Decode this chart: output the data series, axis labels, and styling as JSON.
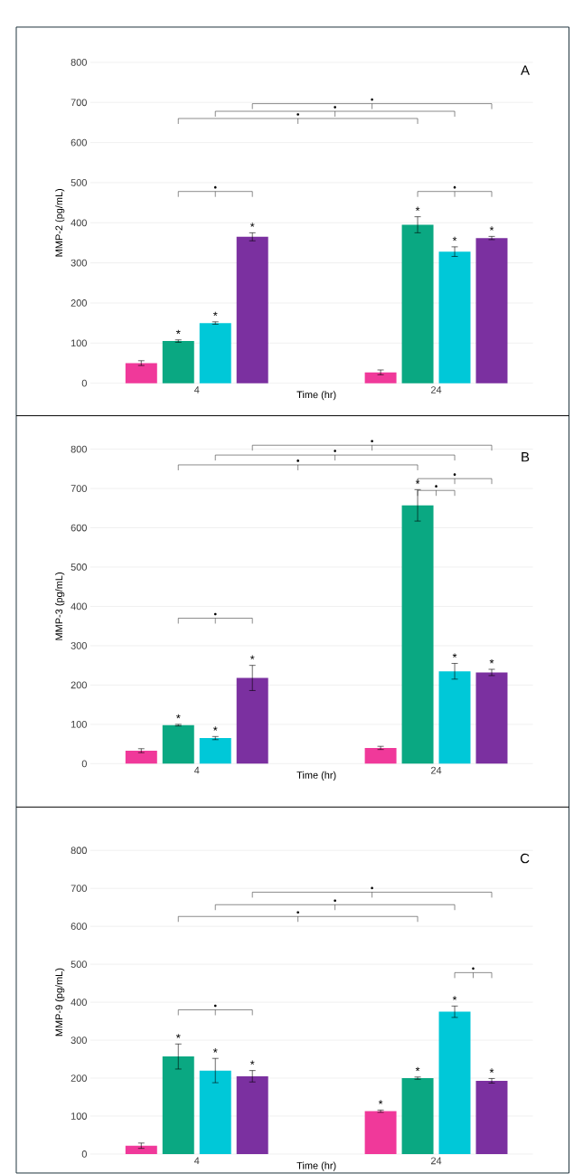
{
  "chart_data": [
    {
      "type": "bar",
      "title": "A",
      "xlabel": "Time (hr)",
      "ylabel": "MMP-2 (pg/mL)",
      "categories": [
        "4",
        "24"
      ],
      "ylim": [
        0,
        800
      ],
      "yticks": [
        0,
        100,
        200,
        300,
        400,
        500,
        600,
        700,
        800
      ],
      "grid": "y",
      "series": [
        {
          "color": "#f0399a",
          "values": [
            50,
            27
          ],
          "errors": [
            6,
            6
          ],
          "value_labels": [
            null,
            null
          ]
        },
        {
          "color": "#0aa882",
          "values": [
            105,
            395
          ],
          "errors": [
            3,
            20
          ],
          "value_labels": [
            "*",
            "*"
          ]
        },
        {
          "color": "#00c8d8",
          "values": [
            150,
            328
          ],
          "errors": [
            3,
            12
          ],
          "value_labels": [
            "*",
            "*"
          ]
        },
        {
          "color": "#7b30a0",
          "values": [
            365,
            362
          ],
          "errors": [
            10,
            4
          ],
          "value_labels": [
            "*",
            "*"
          ]
        }
      ],
      "annotations": [
        "•",
        "•",
        "•",
        "•",
        "•"
      ]
    },
    {
      "type": "bar",
      "title": "B",
      "xlabel": "Time (hr)",
      "ylabel": "MMP-3 (pg/mL)",
      "categories": [
        "4",
        "24"
      ],
      "ylim": [
        0,
        800
      ],
      "yticks": [
        0,
        100,
        200,
        300,
        400,
        500,
        600,
        700,
        800
      ],
      "grid": "y",
      "series": [
        {
          "color": "#f0399a",
          "values": [
            33,
            40
          ],
          "errors": [
            5,
            4
          ],
          "value_labels": [
            null,
            null
          ]
        },
        {
          "color": "#0aa882",
          "values": [
            98,
            657
          ],
          "errors": [
            2,
            40
          ],
          "value_labels": [
            "*",
            "*"
          ]
        },
        {
          "color": "#00c8d8",
          "values": [
            65,
            235
          ],
          "errors": [
            4,
            20
          ],
          "value_labels": [
            "*",
            "*"
          ]
        },
        {
          "color": "#7b30a0",
          "values": [
            218,
            232
          ],
          "errors": [
            32,
            8
          ],
          "value_labels": [
            "*",
            "*"
          ]
        }
      ],
      "annotations": [
        "•",
        "•",
        "•",
        "•",
        "•",
        "•"
      ]
    },
    {
      "type": "bar",
      "title": "C",
      "xlabel": "Time (hr)",
      "ylabel": "MMP-9 (pg/mL)",
      "categories": [
        "4",
        "24"
      ],
      "ylim": [
        0,
        800
      ],
      "yticks": [
        0,
        100,
        200,
        300,
        400,
        500,
        600,
        700,
        800
      ],
      "grid": "y",
      "series": [
        {
          "color": "#f0399a",
          "values": [
            22,
            113
          ],
          "errors": [
            7,
            3
          ],
          "value_labels": [
            null,
            "*"
          ]
        },
        {
          "color": "#0aa882",
          "values": [
            257,
            200
          ],
          "errors": [
            33,
            3
          ],
          "value_labels": [
            "*",
            "*"
          ]
        },
        {
          "color": "#00c8d8",
          "values": [
            220,
            375
          ],
          "errors": [
            32,
            15
          ],
          "value_labels": [
            "*",
            "*"
          ]
        },
        {
          "color": "#7b30a0",
          "values": [
            205,
            193
          ],
          "errors": [
            15,
            6
          ],
          "value_labels": [
            "*",
            "*"
          ]
        }
      ],
      "annotations": [
        "•",
        "•",
        "•",
        "•",
        "•"
      ]
    }
  ]
}
